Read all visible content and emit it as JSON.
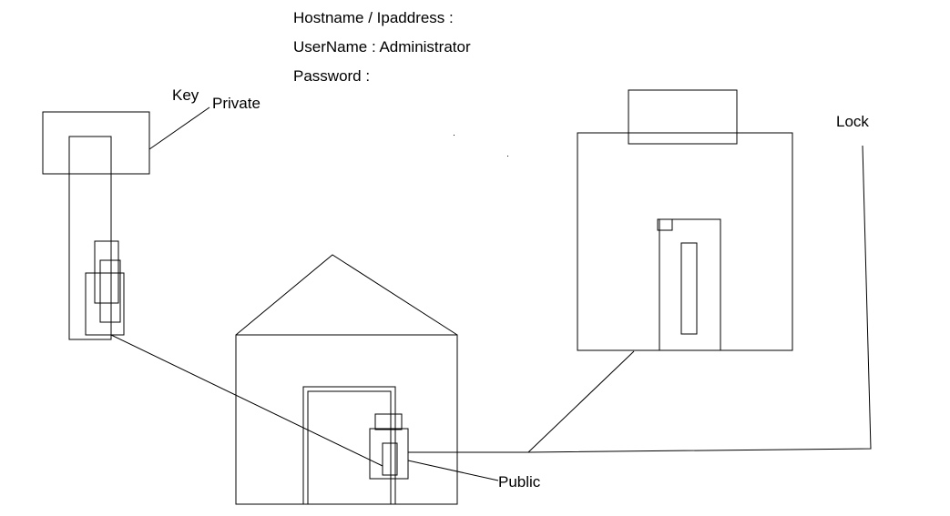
{
  "header": {
    "hostname_label": "Hostname / Ipaddress :",
    "username_label": "UserName : Administrator",
    "password_label": "Password :"
  },
  "labels": {
    "key": "Key",
    "private": "Private",
    "lock": "Lock",
    "public": "Public"
  },
  "colors": {
    "stroke": "#000000",
    "background": "#ffffff"
  }
}
